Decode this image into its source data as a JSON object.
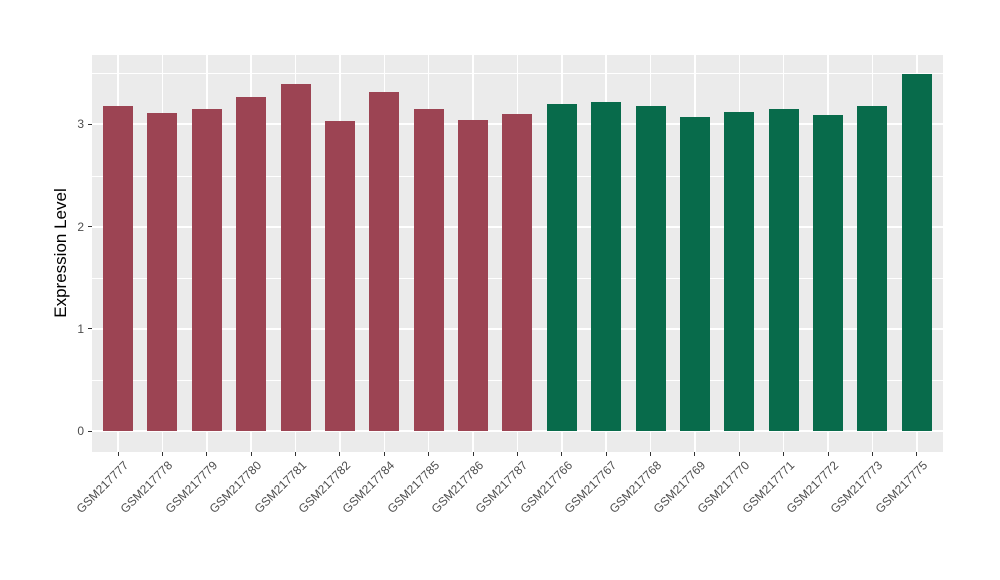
{
  "chart_data": {
    "type": "bar",
    "title": "",
    "xlabel": "",
    "ylabel": "Expression Level",
    "ylim": [
      -0.2,
      3.68
    ],
    "yticks": [
      0,
      1,
      2,
      3
    ],
    "y_minor_step": 0.5,
    "grid": "major+minor, white on gray panel",
    "legend": "none",
    "categories": [
      "GSM217777",
      "GSM217778",
      "GSM217779",
      "GSM217780",
      "GSM217781",
      "GSM217782",
      "GSM217784",
      "GSM217785",
      "GSM217786",
      "GSM217787",
      "GSM217766",
      "GSM217767",
      "GSM217768",
      "GSM217769",
      "GSM217770",
      "GSM217771",
      "GSM217772",
      "GSM217773",
      "GSM217775"
    ],
    "values": [
      3.18,
      3.11,
      3.15,
      3.27,
      3.4,
      3.03,
      3.32,
      3.15,
      3.04,
      3.1,
      3.2,
      3.22,
      3.18,
      3.07,
      3.12,
      3.15,
      3.09,
      3.18,
      3.49
    ],
    "bar_groups": [
      "red",
      "red",
      "red",
      "red",
      "red",
      "red",
      "red",
      "red",
      "red",
      "red",
      "green",
      "green",
      "green",
      "green",
      "green",
      "green",
      "green",
      "green",
      "green"
    ],
    "group_colors": {
      "red": "#9C4453",
      "green": "#086B4B"
    },
    "panel_bg": "#EBEBEB",
    "grid_color": "#FFFFFF",
    "tick_color": "#333333",
    "axis_text_color": "#4d4d4d"
  }
}
